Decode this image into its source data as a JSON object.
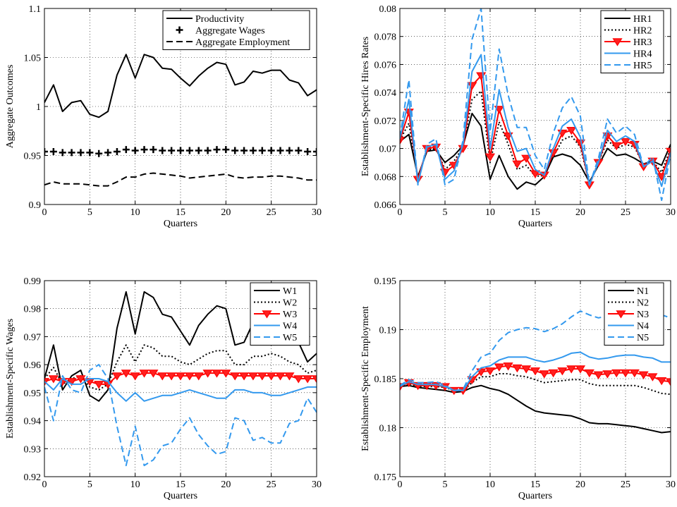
{
  "chart_data": [
    {
      "type": "line",
      "xlabel": "Quarters",
      "ylabel": "Aggregate Outcomes",
      "xlim": [
        0,
        30
      ],
      "ylim": [
        0.9,
        1.1
      ],
      "xticks": [
        0,
        5,
        10,
        15,
        20,
        25,
        30
      ],
      "yticks": [
        0.9,
        0.95,
        1,
        1.05,
        1.1
      ],
      "ytick_labels": [
        "0.9",
        "0.95",
        "1",
        "1.05",
        "1.1"
      ],
      "grid": true,
      "legend_position": "top-right",
      "x": [
        0,
        1,
        2,
        3,
        4,
        5,
        6,
        7,
        8,
        9,
        10,
        11,
        12,
        13,
        14,
        15,
        16,
        17,
        18,
        19,
        20,
        21,
        22,
        23,
        24,
        25,
        26,
        27,
        28,
        29,
        30
      ],
      "series": [
        {
          "name": "Productivity",
          "color": "#000000",
          "style": "solid",
          "marker": "none",
          "width": 2,
          "values": [
            1.004,
            1.022,
            0.995,
            1.004,
            1.006,
            0.992,
            0.989,
            0.995,
            1.032,
            1.053,
            1.029,
            1.053,
            1.05,
            1.039,
            1.038,
            1.029,
            1.021,
            1.031,
            1.039,
            1.045,
            1.043,
            1.022,
            1.025,
            1.036,
            1.034,
            1.037,
            1.037,
            1.027,
            1.024,
            1.011,
            1.017
          ]
        },
        {
          "name": "Aggregate Wages",
          "color": "#000000",
          "style": "none",
          "marker": "plus",
          "width": 2,
          "values": [
            0.954,
            0.954,
            0.953,
            0.953,
            0.953,
            0.953,
            0.952,
            0.953,
            0.954,
            0.956,
            0.955,
            0.956,
            0.956,
            0.955,
            0.955,
            0.955,
            0.955,
            0.955,
            0.955,
            0.956,
            0.956,
            0.955,
            0.955,
            0.955,
            0.955,
            0.955,
            0.955,
            0.955,
            0.955,
            0.954,
            0.954
          ]
        },
        {
          "name": "Aggregate Employment",
          "color": "#000000",
          "style": "dash",
          "marker": "none",
          "width": 2,
          "values": [
            0.92,
            0.923,
            0.921,
            0.921,
            0.921,
            0.92,
            0.919,
            0.919,
            0.923,
            0.928,
            0.928,
            0.931,
            0.932,
            0.931,
            0.93,
            0.929,
            0.927,
            0.928,
            0.929,
            0.93,
            0.931,
            0.928,
            0.927,
            0.928,
            0.928,
            0.929,
            0.929,
            0.928,
            0.927,
            0.925,
            0.925
          ]
        }
      ]
    },
    {
      "type": "line",
      "xlabel": "Quarters",
      "ylabel": "Establishment-Specific Hires Rates",
      "xlim": [
        0,
        30
      ],
      "ylim": [
        0.066,
        0.08
      ],
      "xticks": [
        0,
        5,
        10,
        15,
        20,
        25,
        30
      ],
      "yticks": [
        0.066,
        0.068,
        0.07,
        0.072,
        0.074,
        0.076,
        0.078,
        0.08
      ],
      "ytick_labels": [
        "0.066",
        "0.068",
        "0.07",
        "0.072",
        "0.074",
        "0.076",
        "0.078",
        "0.08"
      ],
      "grid": true,
      "legend_position": "top-right",
      "x": [
        0,
        1,
        2,
        3,
        4,
        5,
        6,
        7,
        8,
        9,
        10,
        11,
        12,
        13,
        14,
        15,
        16,
        17,
        18,
        19,
        20,
        21,
        22,
        23,
        24,
        25,
        26,
        27,
        28,
        29,
        30
      ],
      "series": [
        {
          "name": "HR1",
          "color": "#000000",
          "style": "solid",
          "marker": "none",
          "width": 2,
          "values": [
            0.0705,
            0.071,
            0.068,
            0.0698,
            0.0699,
            0.069,
            0.0695,
            0.0702,
            0.0725,
            0.0716,
            0.0678,
            0.0695,
            0.068,
            0.0671,
            0.0676,
            0.0674,
            0.068,
            0.0694,
            0.0696,
            0.0694,
            0.0688,
            0.0676,
            0.0688,
            0.07,
            0.0695,
            0.0696,
            0.0693,
            0.0689,
            0.0691,
            0.0688,
            0.0703
          ]
        },
        {
          "name": "HR2",
          "color": "#000000",
          "style": "dot",
          "marker": "none",
          "width": 2,
          "values": [
            0.0706,
            0.0718,
            0.0678,
            0.0699,
            0.07,
            0.0685,
            0.0691,
            0.0701,
            0.0735,
            0.0741,
            0.069,
            0.0719,
            0.0703,
            0.0685,
            0.0688,
            0.068,
            0.0681,
            0.0694,
            0.0706,
            0.0709,
            0.0701,
            0.0675,
            0.069,
            0.0706,
            0.07,
            0.0703,
            0.0701,
            0.0688,
            0.0691,
            0.0683,
            0.07
          ]
        },
        {
          "name": "HR3",
          "color": "#ff0000",
          "style": "solid",
          "marker": "triangle-down",
          "width": 2,
          "values": [
            0.0706,
            0.0726,
            0.0678,
            0.07,
            0.0701,
            0.0683,
            0.0688,
            0.07,
            0.0745,
            0.0752,
            0.0694,
            0.0728,
            0.0709,
            0.0689,
            0.0693,
            0.0682,
            0.0681,
            0.0697,
            0.0711,
            0.0713,
            0.0704,
            0.0674,
            0.069,
            0.0709,
            0.0702,
            0.0705,
            0.0703,
            0.0687,
            0.0691,
            0.068,
            0.0698
          ]
        },
        {
          "name": "HR4",
          "color": "#3399ee",
          "style": "solid",
          "marker": "none",
          "width": 2,
          "values": [
            0.0707,
            0.0735,
            0.0675,
            0.0701,
            0.0703,
            0.0678,
            0.0684,
            0.0703,
            0.0755,
            0.0767,
            0.07,
            0.0742,
            0.0715,
            0.0698,
            0.07,
            0.0685,
            0.0681,
            0.07,
            0.0716,
            0.0721,
            0.0708,
            0.0674,
            0.069,
            0.0713,
            0.0705,
            0.0709,
            0.0705,
            0.0687,
            0.0691,
            0.0673,
            0.0697
          ]
        },
        {
          "name": "HR5",
          "color": "#3399ee",
          "style": "dash",
          "marker": "none",
          "width": 2,
          "values": [
            0.0708,
            0.0749,
            0.0674,
            0.0703,
            0.0707,
            0.0674,
            0.0678,
            0.0706,
            0.0778,
            0.08,
            0.0712,
            0.0771,
            0.0738,
            0.0715,
            0.0715,
            0.0695,
            0.0685,
            0.0711,
            0.0729,
            0.0737,
            0.0723,
            0.0674,
            0.0693,
            0.0721,
            0.0711,
            0.0716,
            0.071,
            0.0687,
            0.0694,
            0.0663,
            0.0696
          ]
        }
      ]
    },
    {
      "type": "line",
      "xlabel": "Quarters",
      "ylabel": "Establishment-Specific Wages",
      "xlim": [
        0,
        30
      ],
      "ylim": [
        0.92,
        0.99
      ],
      "xticks": [
        0,
        5,
        10,
        15,
        20,
        25,
        30
      ],
      "yticks": [
        0.92,
        0.93,
        0.94,
        0.95,
        0.96,
        0.97,
        0.98,
        0.99
      ],
      "ytick_labels": [
        "0.92",
        "0.93",
        "0.94",
        "0.95",
        "0.96",
        "0.97",
        "0.98",
        "0.99"
      ],
      "grid": true,
      "legend_position": "top-right",
      "x": [
        0,
        1,
        2,
        3,
        4,
        5,
        6,
        7,
        8,
        9,
        10,
        11,
        12,
        13,
        14,
        15,
        16,
        17,
        18,
        19,
        20,
        21,
        22,
        23,
        24,
        25,
        26,
        27,
        28,
        29,
        30
      ],
      "series": [
        {
          "name": "W1",
          "color": "#000000",
          "style": "solid",
          "marker": "none",
          "width": 2,
          "values": [
            0.955,
            0.967,
            0.951,
            0.956,
            0.958,
            0.949,
            0.947,
            0.951,
            0.973,
            0.986,
            0.971,
            0.986,
            0.984,
            0.978,
            0.977,
            0.972,
            0.967,
            0.974,
            0.978,
            0.981,
            0.98,
            0.967,
            0.968,
            0.975,
            0.973,
            0.975,
            0.974,
            0.97,
            0.968,
            0.961,
            0.964
          ]
        },
        {
          "name": "W2",
          "color": "#000000",
          "style": "dot",
          "marker": "none",
          "width": 2,
          "values": [
            0.955,
            0.959,
            0.953,
            0.955,
            0.956,
            0.952,
            0.951,
            0.953,
            0.961,
            0.967,
            0.961,
            0.967,
            0.966,
            0.963,
            0.963,
            0.961,
            0.96,
            0.962,
            0.964,
            0.965,
            0.965,
            0.96,
            0.96,
            0.963,
            0.963,
            0.964,
            0.963,
            0.961,
            0.96,
            0.957,
            0.958
          ]
        },
        {
          "name": "W3",
          "color": "#ff0000",
          "style": "solid",
          "marker": "triangle-down",
          "width": 2,
          "values": [
            0.954,
            0.955,
            0.954,
            0.954,
            0.955,
            0.954,
            0.953,
            0.953,
            0.956,
            0.957,
            0.956,
            0.957,
            0.957,
            0.956,
            0.956,
            0.956,
            0.956,
            0.956,
            0.957,
            0.957,
            0.957,
            0.956,
            0.956,
            0.956,
            0.956,
            0.956,
            0.956,
            0.956,
            0.955,
            0.955,
            0.955
          ]
        },
        {
          "name": "W4",
          "color": "#3399ee",
          "style": "solid",
          "marker": "none",
          "width": 2,
          "values": [
            0.954,
            0.951,
            0.955,
            0.953,
            0.953,
            0.955,
            0.955,
            0.954,
            0.95,
            0.947,
            0.95,
            0.947,
            0.948,
            0.949,
            0.949,
            0.95,
            0.951,
            0.95,
            0.949,
            0.948,
            0.948,
            0.951,
            0.951,
            0.95,
            0.95,
            0.949,
            0.949,
            0.95,
            0.951,
            0.952,
            0.952
          ]
        },
        {
          "name": "W5",
          "color": "#3399ee",
          "style": "dash",
          "marker": "none",
          "width": 2,
          "values": [
            0.952,
            0.94,
            0.956,
            0.951,
            0.95,
            0.958,
            0.96,
            0.955,
            0.938,
            0.924,
            0.938,
            0.924,
            0.926,
            0.931,
            0.932,
            0.937,
            0.941,
            0.935,
            0.931,
            0.928,
            0.929,
            0.941,
            0.94,
            0.933,
            0.934,
            0.932,
            0.932,
            0.939,
            0.94,
            0.948,
            0.943
          ]
        }
      ]
    },
    {
      "type": "line",
      "xlabel": "Quarters",
      "ylabel": "Establishment-Specific Employment",
      "xlim": [
        0,
        30
      ],
      "ylim": [
        0.175,
        0.195
      ],
      "xticks": [
        0,
        5,
        10,
        15,
        20,
        25,
        30
      ],
      "yticks": [
        0.175,
        0.18,
        0.185,
        0.19,
        0.195
      ],
      "ytick_labels": [
        "0.175",
        "0.18",
        "0.185",
        "0.19",
        "0.195"
      ],
      "grid": true,
      "legend_position": "top-right",
      "x": [
        0,
        1,
        2,
        3,
        4,
        5,
        6,
        7,
        8,
        9,
        10,
        11,
        12,
        13,
        14,
        15,
        16,
        17,
        18,
        19,
        20,
        21,
        22,
        23,
        24,
        25,
        26,
        27,
        28,
        29,
        30
      ],
      "series": [
        {
          "name": "N1",
          "color": "#000000",
          "style": "solid",
          "marker": "none",
          "width": 2,
          "values": [
            0.1842,
            0.1843,
            0.1841,
            0.184,
            0.1839,
            0.1838,
            0.1836,
            0.1837,
            0.1841,
            0.1843,
            0.184,
            0.1838,
            0.1834,
            0.1828,
            0.1822,
            0.1817,
            0.1815,
            0.1814,
            0.1813,
            0.1812,
            0.1809,
            0.1805,
            0.1804,
            0.1804,
            0.1803,
            0.1802,
            0.1801,
            0.1799,
            0.1797,
            0.1795,
            0.1796
          ]
        },
        {
          "name": "N2",
          "color": "#000000",
          "style": "dot",
          "marker": "none",
          "width": 2,
          "values": [
            0.1842,
            0.1845,
            0.1842,
            0.1842,
            0.1842,
            0.1841,
            0.1838,
            0.1838,
            0.1846,
            0.1852,
            0.1852,
            0.1855,
            0.1855,
            0.1853,
            0.1852,
            0.1849,
            0.1846,
            0.1847,
            0.1848,
            0.1849,
            0.1849,
            0.1845,
            0.1843,
            0.1843,
            0.1843,
            0.1843,
            0.1843,
            0.1841,
            0.1838,
            0.1835,
            0.1834
          ]
        },
        {
          "name": "N3",
          "color": "#ff0000",
          "style": "solid",
          "marker": "triangle-down",
          "width": 2,
          "values": [
            0.1842,
            0.1846,
            0.1843,
            0.1843,
            0.1843,
            0.1842,
            0.1838,
            0.1838,
            0.1849,
            0.1857,
            0.1858,
            0.1862,
            0.1863,
            0.1861,
            0.186,
            0.1858,
            0.1855,
            0.1856,
            0.1858,
            0.186,
            0.186,
            0.1856,
            0.1854,
            0.1855,
            0.1856,
            0.1856,
            0.1856,
            0.1854,
            0.1852,
            0.1848,
            0.1847
          ]
        },
        {
          "name": "N4",
          "color": "#3399ee",
          "style": "solid",
          "marker": "none",
          "width": 2,
          "values": [
            0.1842,
            0.1847,
            0.1844,
            0.1844,
            0.1844,
            0.1842,
            0.1838,
            0.1838,
            0.1852,
            0.1861,
            0.1863,
            0.1869,
            0.1872,
            0.1872,
            0.1872,
            0.1869,
            0.1867,
            0.1869,
            0.1872,
            0.1876,
            0.1877,
            0.1872,
            0.187,
            0.1871,
            0.1873,
            0.1874,
            0.1874,
            0.1872,
            0.1871,
            0.1867,
            0.1867
          ]
        },
        {
          "name": "N5",
          "color": "#3399ee",
          "style": "dash",
          "marker": "none",
          "width": 2,
          "values": [
            0.1843,
            0.1849,
            0.1846,
            0.1846,
            0.1847,
            0.1843,
            0.1838,
            0.1839,
            0.1858,
            0.1872,
            0.1876,
            0.1889,
            0.1897,
            0.19,
            0.1902,
            0.1901,
            0.1898,
            0.1901,
            0.1906,
            0.1913,
            0.1919,
            0.1915,
            0.1912,
            0.1914,
            0.1918,
            0.1921,
            0.1922,
            0.192,
            0.1919,
            0.1915,
            0.1912
          ]
        }
      ]
    }
  ]
}
